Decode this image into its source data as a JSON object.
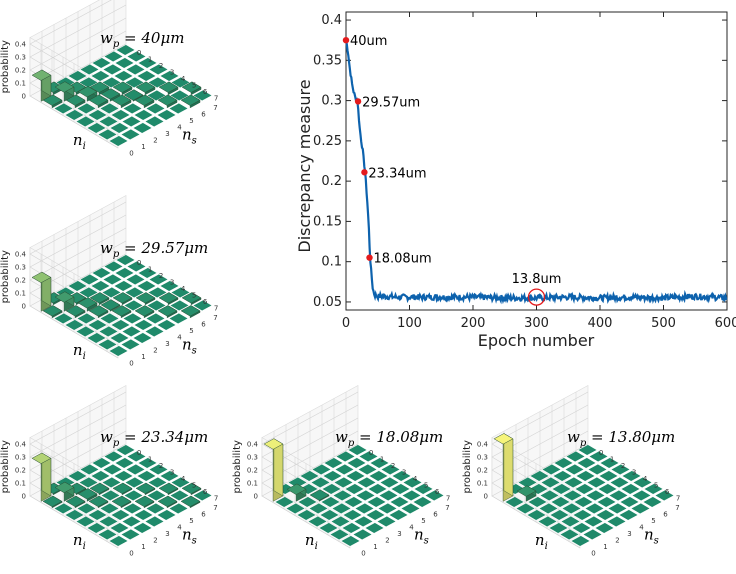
{
  "chart_data": [
    {
      "type": "line",
      "xlabel": "Epoch number",
      "ylabel": "Discrepancy measure",
      "xlim": [
        0,
        600
      ],
      "ylim": [
        0.04,
        0.41
      ],
      "x_ticks": [
        0,
        100,
        200,
        300,
        400,
        500,
        600
      ],
      "y_ticks": [
        0.05,
        0.1,
        0.15,
        0.2,
        0.25,
        0.3,
        0.35,
        0.4
      ],
      "grid": false,
      "line_color": "#0d62ad",
      "series": [
        {
          "x": [
            0,
            3,
            6,
            10,
            14,
            18,
            22,
            26,
            30,
            34,
            36,
            38,
            40,
            42,
            44,
            46,
            50,
            60,
            80,
            100,
            150,
            200,
            250,
            300,
            350,
            400,
            450,
            500,
            550,
            600
          ],
          "y": [
            0.375,
            0.362,
            0.34,
            0.318,
            0.305,
            0.3,
            0.262,
            0.24,
            0.212,
            0.17,
            0.14,
            0.105,
            0.085,
            0.068,
            0.061,
            0.058,
            0.057,
            0.057,
            0.056,
            0.056,
            0.056,
            0.056,
            0.055,
            0.055,
            0.056,
            0.055,
            0.056,
            0.055,
            0.057,
            0.055
          ]
        }
      ],
      "points": [
        {
          "x": 0,
          "y": 0.375,
          "label": "40um"
        },
        {
          "x": 19,
          "y": 0.299,
          "label": "29.57um"
        },
        {
          "x": 29,
          "y": 0.211,
          "label": "23.34um"
        },
        {
          "x": 37,
          "y": 0.105,
          "label": "18.08um"
        }
      ],
      "circled_point": {
        "x": 300,
        "y": 0.056,
        "label": "13.8um"
      },
      "point_color": "#e41a1c",
      "circle_color": "#e41a1c"
    },
    {
      "type": "bar3d",
      "title_prefix": "w",
      "title_sub": "p",
      "title_value": " = 40μm",
      "zlabel": "probability",
      "xlabel": "n",
      "xlabel_sub": "i",
      "ylabel": "n",
      "ylabel_sub": "s",
      "z_ticks": [
        "0",
        "0.1",
        "0.2",
        "0.3",
        "0.4"
      ],
      "index_ticks": [
        "0",
        "1",
        "2",
        "3",
        "4",
        "5",
        "6",
        "7"
      ],
      "distribution_width": 0.4,
      "zmax": 0.45,
      "peak": 0.16
    },
    {
      "type": "bar3d",
      "title_prefix": "w",
      "title_sub": "p",
      "title_value": " = 29.57μm",
      "zlabel": "probability",
      "xlabel": "n",
      "xlabel_sub": "i",
      "ylabel": "n",
      "ylabel_sub": "s",
      "z_ticks": [
        "0",
        "0.1",
        "0.2",
        "0.3",
        "0.4"
      ],
      "index_ticks": [
        "0",
        "1",
        "2",
        "3",
        "4",
        "5",
        "6",
        "7"
      ],
      "distribution_width": 0.29,
      "zmax": 0.45,
      "peak": 0.22
    },
    {
      "type": "bar3d",
      "title_prefix": "w",
      "title_sub": "p",
      "title_value": " = 23.34μm",
      "zlabel": "probability",
      "xlabel": "n",
      "xlabel_sub": "i",
      "ylabel": "n",
      "ylabel_sub": "s",
      "z_ticks": [
        "0",
        "0.1",
        "0.2",
        "0.3",
        "0.4"
      ],
      "index_ticks": [
        "0",
        "1",
        "2",
        "3",
        "4",
        "5",
        "6",
        "7"
      ],
      "distribution_width": 0.21,
      "zmax": 0.45,
      "peak": 0.29
    },
    {
      "type": "bar3d",
      "title_prefix": "w",
      "title_sub": "p",
      "title_value": " = 18.08μm",
      "zlabel": "probability",
      "xlabel": "n",
      "xlabel_sub": "i",
      "ylabel": "n",
      "ylabel_sub": "s",
      "z_ticks": [
        "0",
        "0.1",
        "0.2",
        "0.3",
        "0.4"
      ],
      "index_ticks": [
        "0",
        "1",
        "2",
        "3",
        "4",
        "5",
        "6",
        "7"
      ],
      "distribution_width": 0.12,
      "zmax": 0.45,
      "peak": 0.4
    },
    {
      "type": "bar3d",
      "title_prefix": "w",
      "title_sub": "p",
      "title_value": " = 13.80μm",
      "zlabel": "probability",
      "xlabel": "n",
      "xlabel_sub": "i",
      "ylabel": "n",
      "ylabel_sub": "s",
      "z_ticks": [
        "0",
        "0.1",
        "0.2",
        "0.3",
        "0.4"
      ],
      "index_ticks": [
        "0",
        "1",
        "2",
        "3",
        "4",
        "5",
        "6",
        "7"
      ],
      "distribution_width": 0.08,
      "zmax": 0.45,
      "peak": 0.44
    }
  ],
  "colors": {
    "tile_top": "#1f8a6a",
    "tile_side": "#146650",
    "bar_low": "#1f8a6a",
    "bar_high": "#f6f47a",
    "pane": "#e6e6e6",
    "grid": "#d2d2d2"
  }
}
